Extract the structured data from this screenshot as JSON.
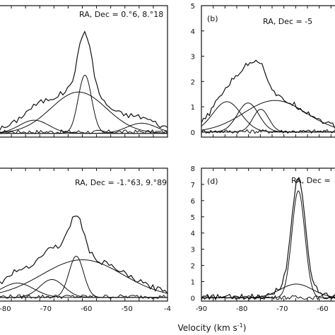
{
  "figure": {
    "xlabel": "Velocity (km s",
    "xlabel_sup": "-1",
    "xlabel_close": ")"
  },
  "chart_data": [
    {
      "type": "line",
      "panel_label": "",
      "annotation": "RA, Dec = 0.°6, 8.°18",
      "xlim": [
        -86,
        -40
      ],
      "ylim": [
        -0.1,
        3.4
      ],
      "xticks": [],
      "yticks": [],
      "components": [
        {
          "amp": 1.1,
          "center": -64,
          "sigma": 7.5
        },
        {
          "amp": 1.55,
          "center": -62.3,
          "sigma": 1.8
        },
        {
          "amp": 0.35,
          "center": -76,
          "sigma": 4
        },
        {
          "amp": 0.27,
          "center": -47,
          "sigma": 4
        }
      ],
      "baseline": 0.08
    },
    {
      "type": "line",
      "panel_label": "(b)",
      "annotation": "RA, Dec = -5",
      "xlim": [
        -88,
        -38
      ],
      "ylim": [
        -0.2,
        5
      ],
      "xticks": [],
      "yticks": [
        "0",
        "1",
        "2",
        "3",
        "4",
        "5"
      ],
      "components": [
        {
          "amp": 1.25,
          "center": -62,
          "sigma": 11
        },
        {
          "amp": 1.15,
          "center": -71.5,
          "sigma": 3.8
        },
        {
          "amp": 0.9,
          "center": -67,
          "sigma": 2.8
        },
        {
          "amp": 1.2,
          "center": -79,
          "sigma": 5
        }
      ],
      "baseline": 0.05
    },
    {
      "type": "line",
      "panel_label": "",
      "annotation": "RA, Dec = -1.°63, 9.°89",
      "xlim": [
        -82,
        -40
      ],
      "ylim": [
        -0.1,
        3.6
      ],
      "xticks": [
        "-80",
        "-70",
        "-60",
        "-50",
        "-4"
      ],
      "yticks": [],
      "components": [
        {
          "amp": 1.05,
          "center": -61,
          "sigma": 10
        },
        {
          "amp": 1.15,
          "center": -62.5,
          "sigma": 1.8
        },
        {
          "amp": 0.5,
          "center": -68.5,
          "sigma": 3
        },
        {
          "amp": 0.4,
          "center": -77,
          "sigma": 4
        }
      ],
      "baseline": 0.05
    },
    {
      "type": "line",
      "panel_label": "(d)",
      "annotation": "RA, Dec =",
      "xlim": [
        -90,
        -55
      ],
      "ylim": [
        -0.2,
        8
      ],
      "xticks": [
        "-90",
        "-80",
        "-70",
        "-60"
      ],
      "yticks": [
        "0",
        "1",
        "2",
        "3",
        "4",
        "5",
        "6",
        "7",
        "8"
      ],
      "components": [
        {
          "amp": 6.6,
          "center": -66,
          "sigma": 1.6
        },
        {
          "amp": 0.85,
          "center": -66.5,
          "sigma": 4
        }
      ],
      "baseline": 0.05
    }
  ]
}
